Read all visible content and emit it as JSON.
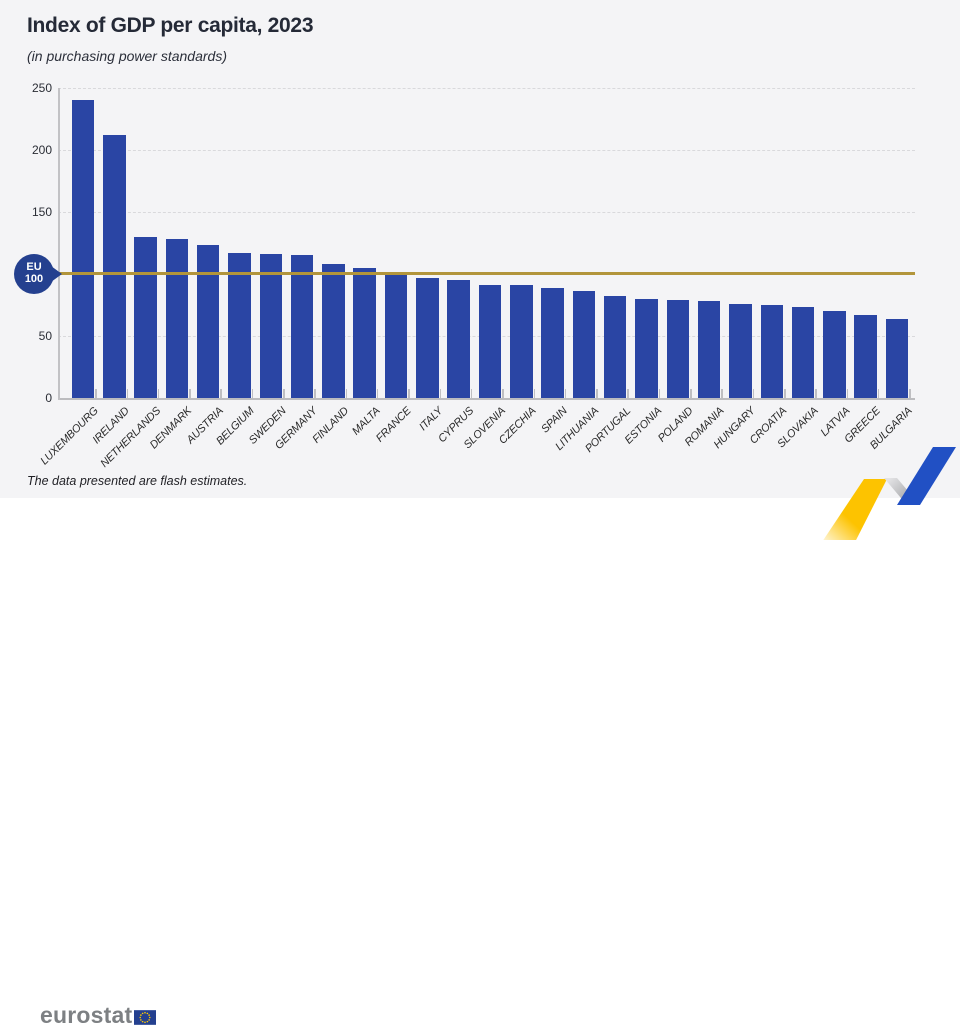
{
  "header": {
    "title": "Index of GDP per capita, 2023",
    "subtitle": "(in purchasing power standards)"
  },
  "chart_data": {
    "type": "bar",
    "title": "Index of GDP per capita, 2023",
    "subtitle": "(in purchasing power standards)",
    "categories": [
      "LUXEMBOURG",
      "IRELAND",
      "NETHERLANDS",
      "DENMARK",
      "AUSTRIA",
      "BELGIUM",
      "SWEDEN",
      "GERMANY",
      "FINLAND",
      "MALTA",
      "FRANCE",
      "ITALY",
      "CYPRUS",
      "SLOVENIA",
      "CZECHIA",
      "SPAIN",
      "LITHUANIA",
      "PORTUGAL",
      "ESTONIA",
      "POLAND",
      "ROMANIA",
      "HUNGARY",
      "CROATIA",
      "SLOVAKIA",
      "LATVIA",
      "GREECE",
      "BULGARIA"
    ],
    "values": [
      240,
      212,
      130,
      128,
      123,
      117,
      116,
      115,
      108,
      105,
      100,
      97,
      95,
      91,
      91,
      89,
      86,
      82,
      80,
      79,
      78,
      76,
      75,
      73,
      70,
      67,
      64
    ],
    "xlabel": "",
    "ylabel": "",
    "ylim": [
      0,
      250
    ],
    "yticks": [
      0,
      50,
      100,
      150,
      200,
      250
    ],
    "grid": "horizontal-dashed",
    "legend": "none",
    "reference_line": {
      "value": 100,
      "label": "EU 100"
    },
    "bar_color": "#2a45a4",
    "reference_color": "#b2953b"
  },
  "badge": {
    "line1": "EU",
    "line2": "100"
  },
  "footnote": "The data presented are flash estimates.",
  "logo": {
    "text": "eurostat"
  },
  "colors": {
    "panel_background": "#f4f4f6",
    "page_background": "#ffffff",
    "bar_blue": "#2a45a4",
    "reference_gold": "#b2953b",
    "badge_blue": "#24408f",
    "grid_gray": "#d9d9dc",
    "axis_gray": "#c2c2c5",
    "title_navy": "#252a37",
    "logo_gray": "#7d8083",
    "flag_blue": "#24408f",
    "star_yellow": "#ffcc00",
    "ribbon_yellow": "#fdc300",
    "ribbon_blue": "#2150c4",
    "ribbon_gray": "#97989b"
  }
}
